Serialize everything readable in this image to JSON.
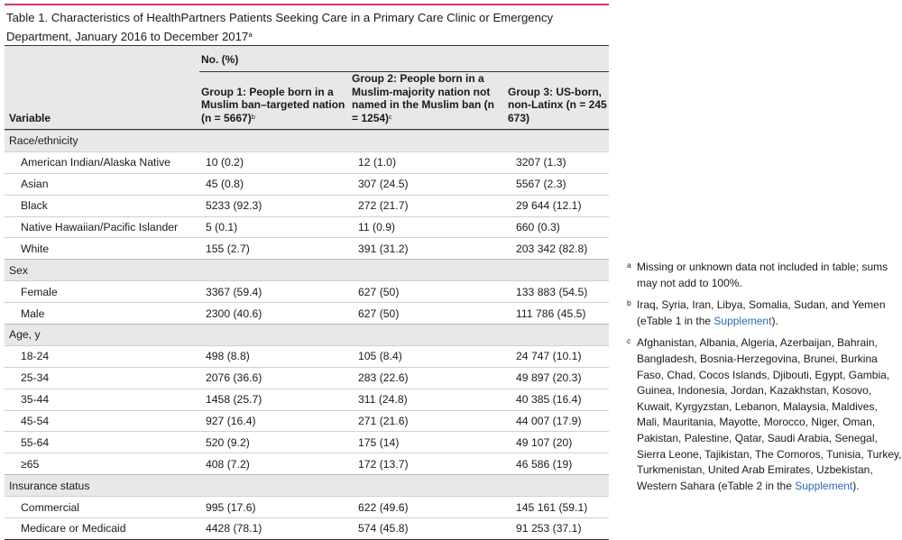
{
  "title": {
    "text": "Table 1. Characteristics of HealthPartners Patients Seeking Care in a Primary Care Clinic or Emergency Department, January 2016 to December 2017",
    "mark": "a"
  },
  "header": {
    "np": "No. (%)",
    "variable": "Variable",
    "g1": "Group 1: People born in a Muslim ban–targeted nation (n = 5667)",
    "g1_mark": "b",
    "g2": "Group 2: People born in a Muslim-majority nation not named in the Muslim ban (n = 1254)",
    "g2_mark": "c",
    "g3": "Group 3: US-born, non-Latinx (n = 245 673)"
  },
  "rows": [
    {
      "type": "section",
      "label": "Race/ethnicity"
    },
    {
      "type": "item",
      "label": "American Indian/Alaska Native",
      "g1": "10 (0.2)",
      "g2": "12 (1.0)",
      "g3": "3207 (1.3)"
    },
    {
      "type": "item",
      "label": "Asian",
      "g1": "45 (0.8)",
      "g2": "307 (24.5)",
      "g3": "5567 (2.3)"
    },
    {
      "type": "item",
      "label": "Black",
      "g1": "5233 (92.3)",
      "g2": "272 (21.7)",
      "g3": "29 644 (12.1)"
    },
    {
      "type": "item",
      "label": "Native Hawaiian/Pacific Islander",
      "g1": "5 (0.1)",
      "g2": "11 (0.9)",
      "g3": "660 (0.3)"
    },
    {
      "type": "item",
      "label": "White",
      "g1": "155 (2.7)",
      "g2": "391 (31.2)",
      "g3": "203 342 (82.8)"
    },
    {
      "type": "section",
      "label": "Sex"
    },
    {
      "type": "item",
      "label": "Female",
      "g1": "3367 (59.4)",
      "g2": "627 (50)",
      "g3": "133 883 (54.5)"
    },
    {
      "type": "item",
      "label": "Male",
      "g1": "2300 (40.6)",
      "g2": "627 (50)",
      "g3": "111 786 (45.5)"
    },
    {
      "type": "section",
      "label": "Age, y"
    },
    {
      "type": "item",
      "label": "18-24",
      "g1": "498 (8.8)",
      "g2": "105 (8.4)",
      "g3": "24 747 (10.1)"
    },
    {
      "type": "item",
      "label": "25-34",
      "g1": "2076 (36.6)",
      "g2": "283 (22.6)",
      "g3": "49 897 (20.3)"
    },
    {
      "type": "item",
      "label": "35-44",
      "g1": "1458 (25.7)",
      "g2": "311 (24.8)",
      "g3": "40 385 (16.4)"
    },
    {
      "type": "item",
      "label": "45-54",
      "g1": "927 (16.4)",
      "g2": "271 (21.6)",
      "g3": "44 007 (17.9)"
    },
    {
      "type": "item",
      "label": "55-64",
      "g1": "520 (9.2)",
      "g2": "175 (14)",
      "g3": "49 107 (20)"
    },
    {
      "type": "item",
      "label": "≥65",
      "g1": "408 (7.2)",
      "g2": "172 (13.7)",
      "g3": "46 586 (19)"
    },
    {
      "type": "section",
      "label": "Insurance status"
    },
    {
      "type": "item",
      "label": "Commercial",
      "g1": "995 (17.6)",
      "g2": "622 (49.6)",
      "g3": "145 161 (59.1)"
    },
    {
      "type": "item",
      "label": "Medicare or Medicaid",
      "g1": "4428 (78.1)",
      "g2": "574 (45.8)",
      "g3": "91 253 (37.1)"
    }
  ],
  "footnotes": [
    {
      "mark": "a",
      "text": "Missing or unknown data not included in table; sums may not add to 100%.",
      "link": "",
      "tail": ""
    },
    {
      "mark": "b",
      "text": "Iraq, Syria, Iran, Libya, Somalia, Sudan, and Yemen (eTable 1 in the ",
      "link": "Supplement",
      "tail": ")."
    },
    {
      "mark": "c",
      "text": "Afghanistan, Albania, Algeria, Azerbaijan, Bahrain, Bangladesh, Bosnia-Herzegovina, Brunei, Burkina Faso, Chad, Cocos Islands, Djibouti, Egypt, Gambia, Guinea, Indonesia, Jordan, Kazakhstan, Kosovo, Kuwait, Kyrgyzstan, Lebanon, Malaysia, Maldives, Mali, Mauritania, Mayotte, Morocco, Niger, Oman, Pakistan, Palestine, Qatar, Saudi Arabia, Senegal, Sierra Leone, Tajikistan, The Comoros, Tunisia, Turkey, Turkmenistan, United Arab Emirates, Uzbekistan, Western Sahara (eTable 2 in the ",
      "link": "Supplement",
      "tail": ")."
    }
  ],
  "colors": {
    "accent": "#d6336c",
    "link": "#2b6cb0",
    "header_bg": "#e8e8e8"
  }
}
